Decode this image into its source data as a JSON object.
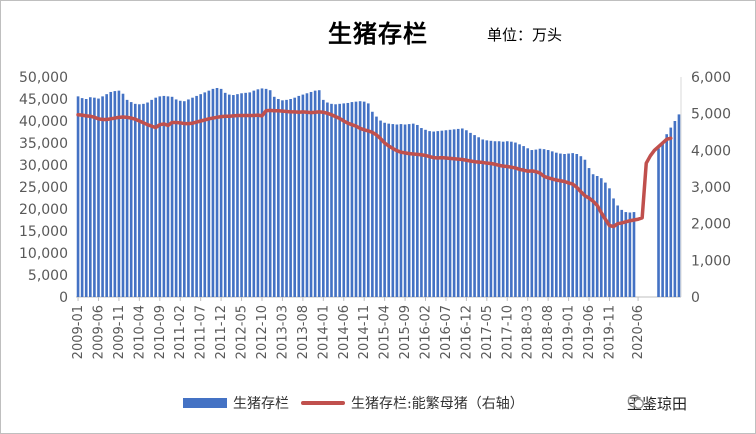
{
  "title": "生猪存栏",
  "unit": "单位：万头",
  "watermark": "玉鉴琼田",
  "chart_data": {
    "type": "bar",
    "title": "生猪存栏",
    "subtitle": "单位：万头",
    "y_left": {
      "min": 0,
      "max": 50000,
      "step": 5000,
      "ticks": [
        "0",
        "5,000",
        "10,000",
        "15,000",
        "20,000",
        "25,000",
        "30,000",
        "35,000",
        "40,000",
        "45,000",
        "50,000"
      ]
    },
    "y_right": {
      "min": 0,
      "max": 6000,
      "step": 1000,
      "ticks": [
        "0",
        "1,000",
        "2,000",
        "3,000",
        "4,000",
        "5,000",
        "6,000"
      ]
    },
    "x_tick_labels": [
      "2009-01",
      "2009-06",
      "2009-11",
      "2010-04",
      "2010-09",
      "2011-02",
      "2011-07",
      "2011-12",
      "2012-05",
      "2012-10",
      "2013-03",
      "2013-08",
      "2014-01",
      "2014-06",
      "2014-11",
      "2015-04",
      "2015-09",
      "2016-02",
      "2016-07",
      "2016-12",
      "2017-05",
      "2017-10",
      "2018-03",
      "2018-08",
      "2019-01",
      "2019-06",
      "2019-11",
      "2020-06"
    ],
    "x_start": "2009-01",
    "grid": false,
    "legend_position": "bottom",
    "series": [
      {
        "name": "生猪存栏",
        "axis": "left",
        "kind": "bar",
        "color": "#4472c4",
        "values": [
          45600,
          45200,
          45000,
          45400,
          45300,
          45100,
          45600,
          46100,
          46600,
          46800,
          46900,
          46200,
          44800,
          44300,
          43900,
          43800,
          43900,
          44200,
          44800,
          45300,
          45600,
          45700,
          45600,
          45500,
          44900,
          44600,
          44500,
          44900,
          45300,
          45700,
          46100,
          46500,
          46900,
          47300,
          47500,
          47300,
          46400,
          46000,
          45900,
          46100,
          46300,
          46400,
          46500,
          46900,
          47200,
          47400,
          47300,
          47000,
          45500,
          45000,
          44700,
          44800,
          45000,
          45300,
          45700,
          46000,
          46300,
          46600,
          46900,
          47000,
          44800,
          44200,
          43900,
          43800,
          43900,
          44000,
          44100,
          44300,
          44400,
          44500,
          44400,
          44000,
          42100,
          41000,
          40100,
          39600,
          39400,
          39300,
          39200,
          39300,
          39200,
          39300,
          39400,
          39100,
          38400,
          38000,
          37700,
          37600,
          37700,
          37800,
          37900,
          38000,
          38100,
          38200,
          38300,
          37900,
          37300,
          36800,
          36300,
          35800,
          35600,
          35500,
          35400,
          35400,
          35300,
          35400,
          35300,
          35100,
          34700,
          34300,
          33800,
          33400,
          33500,
          33700,
          33600,
          33400,
          33100,
          32800,
          32600,
          32500,
          32600,
          32700,
          32500,
          32000,
          31200,
          29300,
          27900,
          27500,
          27000,
          26000,
          24700,
          22400,
          20800,
          19800,
          19300,
          19200,
          19300,
          null,
          null,
          null,
          null,
          null,
          33800,
          35000,
          37000,
          38500,
          40000,
          41500
        ]
      },
      {
        "name": "生猪存栏:能繁母猪（右轴）",
        "axis": "right",
        "kind": "line",
        "color": "#c0504d",
        "values": [
          4970,
          4960,
          4940,
          4930,
          4900,
          4860,
          4840,
          4840,
          4860,
          4880,
          4900,
          4910,
          4900,
          4880,
          4850,
          4800,
          4750,
          4700,
          4660,
          4620,
          4700,
          4720,
          4680,
          4760,
          4760,
          4750,
          4730,
          4730,
          4740,
          4770,
          4800,
          4830,
          4860,
          4880,
          4900,
          4920,
          4930,
          4930,
          4940,
          4950,
          4950,
          4950,
          4950,
          4950,
          4960,
          4940,
          5080,
          5090,
          5080,
          5080,
          5070,
          5060,
          5050,
          5050,
          5040,
          5050,
          5040,
          5030,
          5040,
          5050,
          5040,
          5010,
          4970,
          4920,
          4870,
          4800,
          4740,
          4700,
          4660,
          4600,
          4560,
          4530,
          4490,
          4420,
          4320,
          4200,
          4120,
          4050,
          3990,
          3950,
          3930,
          3910,
          3900,
          3890,
          3880,
          3860,
          3830,
          3800,
          3790,
          3800,
          3790,
          3780,
          3770,
          3760,
          3750,
          3730,
          3710,
          3690,
          3680,
          3670,
          3650,
          3640,
          3620,
          3590,
          3570,
          3560,
          3540,
          3520,
          3480,
          3460,
          3430,
          3440,
          3420,
          3380,
          3290,
          3250,
          3220,
          3190,
          3170,
          3150,
          3110,
          3080,
          2990,
          2870,
          2760,
          2700,
          2610,
          2500,
          2300,
          2120,
          1950,
          1920,
          2000,
          2020,
          2050,
          2080,
          2100,
          2120,
          2160,
          3650,
          3850,
          4000,
          4100,
          4200,
          4300,
          4330
        ]
      }
    ]
  }
}
